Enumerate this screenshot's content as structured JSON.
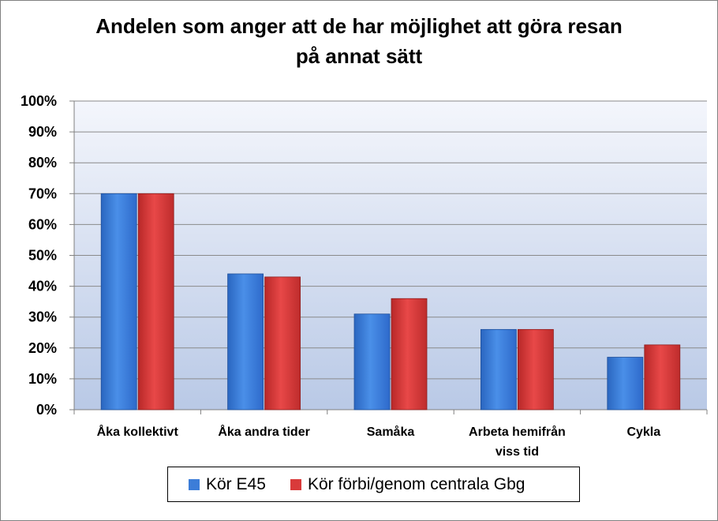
{
  "chart_data": {
    "type": "bar",
    "title": "Andelen som anger att de har möjlighet att göra resan på annat sätt",
    "title_lines": [
      "Andelen som anger att de har möjlighet att göra resan",
      "på annat sätt"
    ],
    "categories": [
      "Åka kollektivt",
      "Åka andra tider",
      "Samåka",
      "Arbeta hemifrån viss tid",
      "Cykla"
    ],
    "category_lines": [
      [
        "Åka kollektivt"
      ],
      [
        "Åka andra tider"
      ],
      [
        "Samåka"
      ],
      [
        "Arbeta hemifrån",
        "viss tid"
      ],
      [
        "Cykla"
      ]
    ],
    "series": [
      {
        "name": "Kör E45",
        "values": [
          0.7,
          0.44,
          0.31,
          0.26,
          0.17
        ],
        "color": "#3C7DD8"
      },
      {
        "name": "Kör förbi/genom centrala Gbg",
        "values": [
          0.7,
          0.43,
          0.36,
          0.26,
          0.21
        ],
        "color": "#D93A3A"
      }
    ],
    "ylim": [
      0,
      1
    ],
    "yticks": [
      "0%",
      "10%",
      "20%",
      "30%",
      "40%",
      "50%",
      "60%",
      "70%",
      "80%",
      "90%",
      "100%"
    ],
    "grid": true,
    "legend_position": "bottom"
  }
}
